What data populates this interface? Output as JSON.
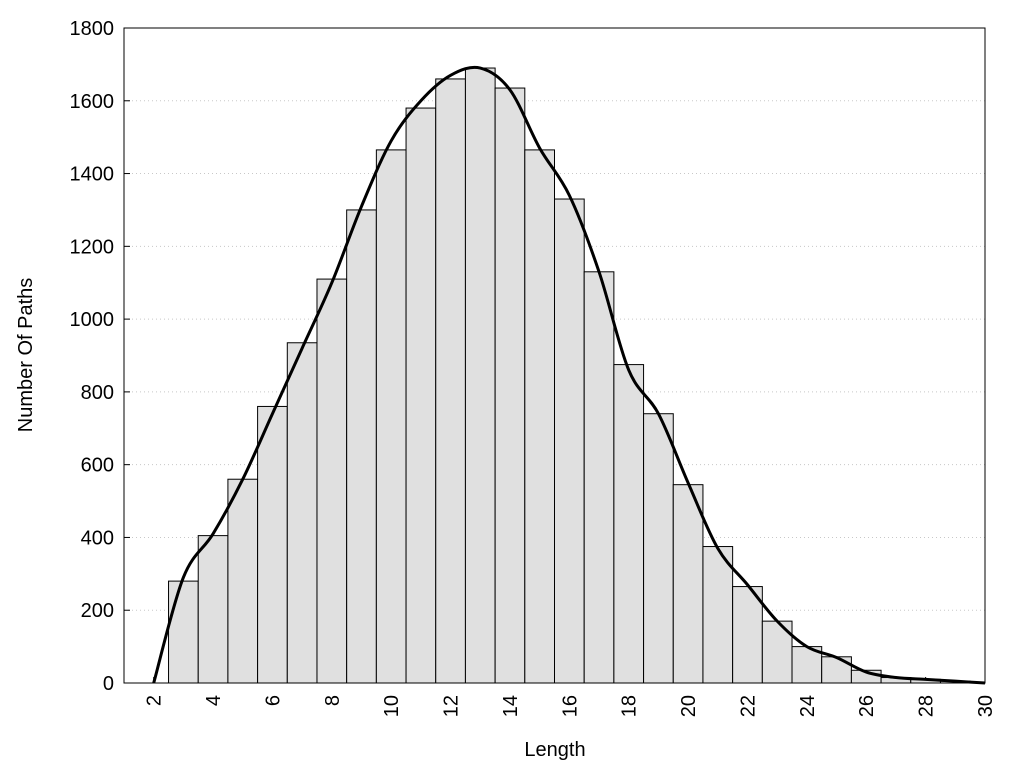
{
  "chart_data": {
    "type": "histogram",
    "x_label": "Length",
    "y_label": "Number Of Paths",
    "bins": [
      2.5,
      3.5,
      4.5,
      5.5,
      6.5,
      7.5,
      8.5,
      9.5,
      10.5,
      11.5,
      12.5,
      13.5,
      14.5,
      15.5,
      16.5,
      17.5,
      18.5,
      19.5,
      20.5,
      21.5,
      22.5,
      23.5,
      24.5,
      25.5,
      26.5,
      27.5,
      28.5,
      29.5
    ],
    "values": [
      280,
      405,
      560,
      760,
      935,
      1110,
      1300,
      1465,
      1580,
      1660,
      1690,
      1635,
      1465,
      1330,
      1130,
      875,
      740,
      545,
      375,
      265,
      170,
      100,
      72,
      35,
      15,
      10,
      5
    ],
    "bar_color": "#e0e0e0",
    "curve": {
      "x": [
        2,
        3,
        4,
        5,
        6,
        7,
        8,
        9,
        10,
        11,
        12,
        13,
        14,
        15,
        16,
        17,
        18,
        19,
        20,
        21,
        22,
        23,
        24,
        25,
        26,
        27,
        28,
        29,
        30
      ],
      "values": [
        0,
        290,
        410,
        560,
        740,
        920,
        1100,
        1310,
        1490,
        1600,
        1670,
        1690,
        1630,
        1470,
        1340,
        1130,
        860,
        740,
        550,
        370,
        270,
        170,
        100,
        70,
        30,
        15,
        10,
        5,
        0
      ],
      "color": "#000000"
    },
    "xlim": [
      1,
      30
    ],
    "ylim": [
      0,
      1800
    ],
    "xticks": [
      2,
      4,
      6,
      8,
      10,
      12,
      14,
      16,
      18,
      20,
      22,
      24,
      26,
      28,
      30
    ],
    "yticks": [
      0,
      200,
      400,
      600,
      800,
      1000,
      1200,
      1400,
      1600,
      1800
    ],
    "grid": true
  }
}
